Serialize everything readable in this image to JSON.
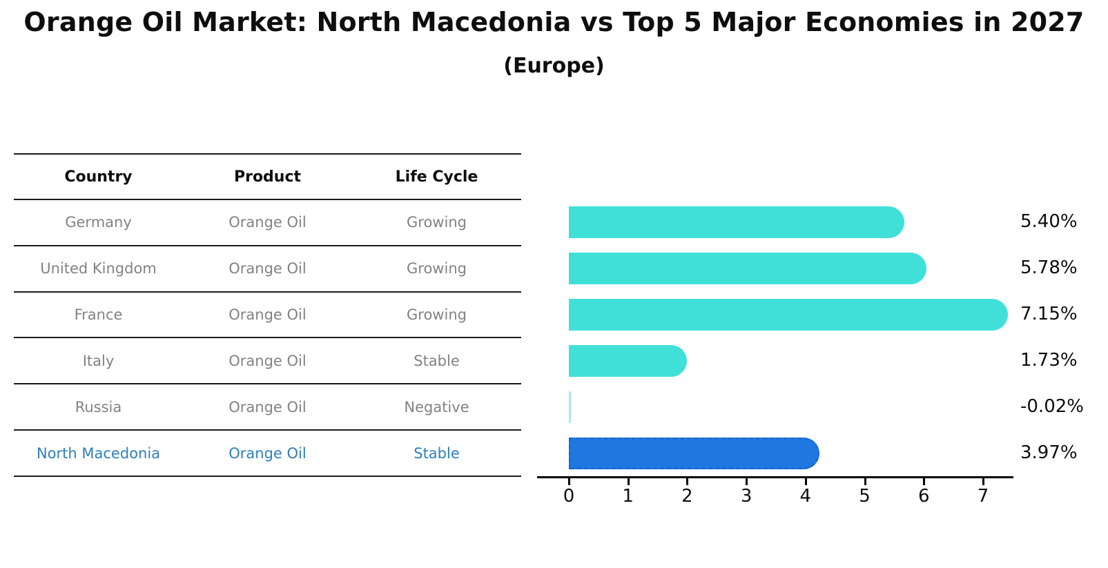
{
  "title": "Orange Oil Market: North Macedonia vs Top 5 Major Economies in 2027",
  "subtitle": "(Europe)",
  "table": {
    "headers": [
      "Country",
      "Product",
      "Life Cycle"
    ],
    "rows": [
      {
        "country": "Germany",
        "product": "Orange Oil",
        "life_cycle": "Growing",
        "highlight": false
      },
      {
        "country": "United Kingdom",
        "product": "Orange Oil",
        "life_cycle": "Growing",
        "highlight": false
      },
      {
        "country": "France",
        "product": "Orange Oil",
        "life_cycle": "Growing",
        "highlight": false
      },
      {
        "country": "Italy",
        "product": "Orange Oil",
        "life_cycle": "Stable",
        "highlight": false
      },
      {
        "country": "Russia",
        "product": "Orange Oil",
        "life_cycle": "Negative",
        "highlight": false
      },
      {
        "country": "North Macedonia",
        "product": "Orange Oil",
        "life_cycle": "Stable",
        "highlight": true
      }
    ]
  },
  "chart_data": {
    "type": "bar",
    "orientation": "horizontal",
    "title": "Orange Oil Market: North Macedonia vs Top 5 Major Economies in 2027",
    "subtitle": "(Europe)",
    "categories": [
      "Germany",
      "United Kingdom",
      "France",
      "Italy",
      "Russia",
      "North Macedonia"
    ],
    "values": [
      5.4,
      5.78,
      7.15,
      1.73,
      -0.02,
      3.97
    ],
    "value_labels": [
      "5.40%",
      "5.78%",
      "7.15%",
      "1.73%",
      "-0.02%",
      "3.97%"
    ],
    "highlight_category": "North Macedonia",
    "x_ticks": [
      0,
      1,
      2,
      3,
      4,
      5,
      6,
      7
    ],
    "xlim": [
      0,
      7.5
    ],
    "grid": false,
    "legend": false,
    "colors": {
      "bar_default": "#40e0d8",
      "bar_highlight": "#1e78e0",
      "bar_highlight_border": "#1563d2",
      "bar_negative": "#a6e9ee",
      "value_label": "#0d0d0d",
      "table_text": "#828282",
      "table_header_text": "#0e0e0e",
      "highlight_text": "#2d7fc1",
      "axis": "#000000"
    }
  }
}
